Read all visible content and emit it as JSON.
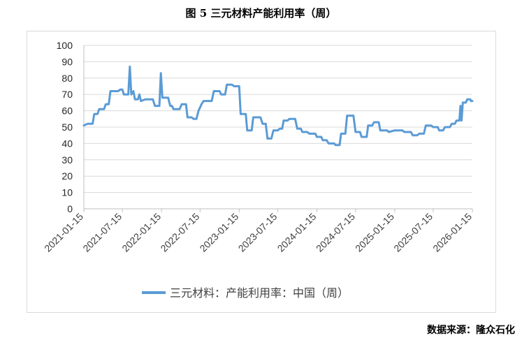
{
  "figure": {
    "title": "图 5  三元材料产能利用率（周）",
    "source": "数据来源：隆众石化"
  },
  "chart_data": {
    "type": "line",
    "title": "图 5  三元材料产能利用率（周）",
    "xlabel": "",
    "ylabel": "",
    "ylim": [
      0,
      100
    ],
    "yticks": [
      0,
      10,
      20,
      30,
      40,
      50,
      60,
      70,
      80,
      90,
      100
    ],
    "xlim": [
      "2021-01-15",
      "2026-01-15"
    ],
    "xticks": [
      "2021-01-15",
      "2021-07-15",
      "2022-01-15",
      "2022-07-15",
      "2023-01-15",
      "2023-07-15",
      "2024-01-15",
      "2024-07-15",
      "2025-01-15",
      "2025-07-15",
      "2026-01-15"
    ],
    "grid": true,
    "legend": "bottom",
    "color": "#5b9bd5",
    "series": [
      {
        "name": "三元材料：产能利用率：中国（周）",
        "color": "#5b9bd5",
        "points": [
          [
            "2021-01-15",
            51
          ],
          [
            "2021-02-01",
            52
          ],
          [
            "2021-02-25",
            52
          ],
          [
            "2021-03-05",
            58
          ],
          [
            "2021-03-20",
            58
          ],
          [
            "2021-03-28",
            61
          ],
          [
            "2021-04-20",
            61
          ],
          [
            "2021-04-28",
            64
          ],
          [
            "2021-05-12",
            64
          ],
          [
            "2021-05-20",
            72
          ],
          [
            "2021-06-25",
            72
          ],
          [
            "2021-07-05",
            73
          ],
          [
            "2021-07-15",
            73
          ],
          [
            "2021-07-22",
            70
          ],
          [
            "2021-08-12",
            70
          ],
          [
            "2021-08-19",
            87
          ],
          [
            "2021-08-26",
            70
          ],
          [
            "2021-09-05",
            72
          ],
          [
            "2021-09-12",
            67
          ],
          [
            "2021-09-26",
            67
          ],
          [
            "2021-10-03",
            70
          ],
          [
            "2021-10-10",
            66
          ],
          [
            "2021-11-01",
            67
          ],
          [
            "2021-12-05",
            67
          ],
          [
            "2021-12-15",
            63
          ],
          [
            "2022-01-05",
            63
          ],
          [
            "2022-01-12",
            83
          ],
          [
            "2022-01-19",
            68
          ],
          [
            "2022-02-15",
            68
          ],
          [
            "2022-02-25",
            63
          ],
          [
            "2022-03-05",
            63
          ],
          [
            "2022-03-12",
            61
          ],
          [
            "2022-04-10",
            61
          ],
          [
            "2022-04-20",
            64
          ],
          [
            "2022-05-10",
            64
          ],
          [
            "2022-05-17",
            56
          ],
          [
            "2022-06-05",
            56
          ],
          [
            "2022-06-15",
            55
          ],
          [
            "2022-06-28",
            55
          ],
          [
            "2022-07-08",
            60
          ],
          [
            "2022-07-22",
            64
          ],
          [
            "2022-08-01",
            66
          ],
          [
            "2022-09-08",
            66
          ],
          [
            "2022-09-18",
            72
          ],
          [
            "2022-10-15",
            72
          ],
          [
            "2022-10-22",
            70
          ],
          [
            "2022-11-10",
            70
          ],
          [
            "2022-11-18",
            76
          ],
          [
            "2022-12-12",
            76
          ],
          [
            "2022-12-22",
            75
          ],
          [
            "2023-01-15",
            75
          ],
          [
            "2023-01-22",
            58
          ],
          [
            "2023-02-15",
            58
          ],
          [
            "2023-02-22",
            48
          ],
          [
            "2023-03-15",
            48
          ],
          [
            "2023-03-22",
            56
          ],
          [
            "2023-04-25",
            56
          ],
          [
            "2023-05-05",
            52
          ],
          [
            "2023-05-20",
            52
          ],
          [
            "2023-05-28",
            43
          ],
          [
            "2023-06-15",
            43
          ],
          [
            "2023-06-25",
            48
          ],
          [
            "2023-07-15",
            48
          ],
          [
            "2023-07-25",
            49
          ],
          [
            "2023-08-05",
            49
          ],
          [
            "2023-08-12",
            54
          ],
          [
            "2023-08-30",
            54
          ],
          [
            "2023-09-08",
            55
          ],
          [
            "2023-10-05",
            55
          ],
          [
            "2023-10-15",
            49
          ],
          [
            "2023-11-01",
            49
          ],
          [
            "2023-11-08",
            47
          ],
          [
            "2023-12-01",
            47
          ],
          [
            "2023-12-10",
            46
          ],
          [
            "2024-01-08",
            46
          ],
          [
            "2024-01-15",
            44
          ],
          [
            "2024-02-05",
            44
          ],
          [
            "2024-02-12",
            42
          ],
          [
            "2024-03-01",
            42
          ],
          [
            "2024-03-10",
            40
          ],
          [
            "2024-04-05",
            40
          ],
          [
            "2024-04-12",
            39
          ],
          [
            "2024-05-01",
            39
          ],
          [
            "2024-05-08",
            46
          ],
          [
            "2024-05-28",
            46
          ],
          [
            "2024-06-05",
            57
          ],
          [
            "2024-07-05",
            57
          ],
          [
            "2024-07-15",
            47
          ],
          [
            "2024-08-05",
            47
          ],
          [
            "2024-08-12",
            44
          ],
          [
            "2024-09-05",
            44
          ],
          [
            "2024-09-12",
            51
          ],
          [
            "2024-10-01",
            51
          ],
          [
            "2024-10-10",
            53
          ],
          [
            "2024-11-01",
            53
          ],
          [
            "2024-11-08",
            48
          ],
          [
            "2024-12-10",
            48
          ],
          [
            "2024-12-18",
            47
          ],
          [
            "2025-01-15",
            48
          ],
          [
            "2025-02-20",
            48
          ],
          [
            "2025-03-01",
            47
          ],
          [
            "2025-04-01",
            47
          ],
          [
            "2025-04-10",
            45
          ],
          [
            "2025-05-01",
            45
          ],
          [
            "2025-05-10",
            46
          ],
          [
            "2025-06-01",
            46
          ],
          [
            "2025-06-10",
            51
          ],
          [
            "2025-07-05",
            51
          ],
          [
            "2025-07-15",
            50
          ],
          [
            "2025-08-05",
            50
          ],
          [
            "2025-08-12",
            48
          ],
          [
            "2025-08-30",
            48
          ],
          [
            "2025-09-08",
            50
          ],
          [
            "2025-10-01",
            50
          ],
          [
            "2025-10-10",
            52
          ],
          [
            "2025-10-25",
            52
          ],
          [
            "2025-11-01",
            54
          ],
          [
            "2025-11-15",
            54
          ],
          [
            "2025-11-20",
            63
          ],
          [
            "2025-11-25",
            54
          ],
          [
            "2025-12-01",
            65
          ],
          [
            "2025-12-15",
            65
          ],
          [
            "2025-12-22",
            67
          ],
          [
            "2026-01-05",
            67
          ],
          [
            "2026-01-08",
            66
          ],
          [
            "2026-01-15",
            66
          ]
        ]
      }
    ]
  }
}
